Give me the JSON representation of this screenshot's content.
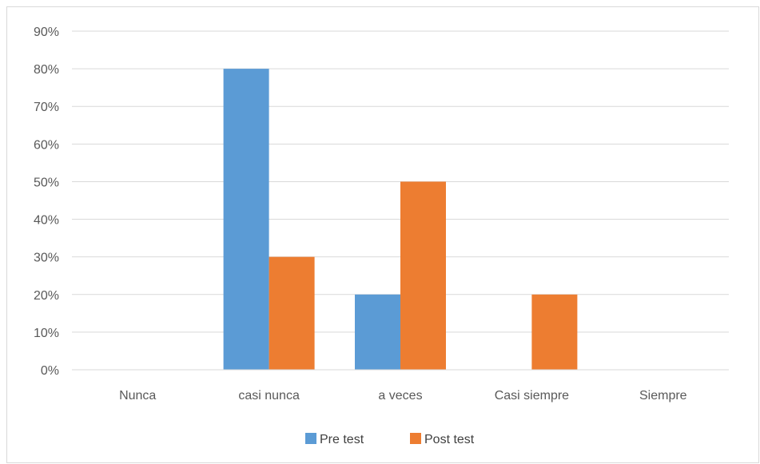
{
  "chart_data": {
    "type": "bar",
    "categories": [
      "Nunca",
      "casi nunca",
      "a veces",
      "Casi siempre",
      "Siempre"
    ],
    "series": [
      {
        "name": "Pre test",
        "values": [
          0,
          80,
          20,
          0,
          0
        ],
        "color": "#5b9bd5"
      },
      {
        "name": "Post test",
        "values": [
          0,
          30,
          50,
          20,
          0
        ],
        "color": "#ed7d31"
      }
    ],
    "y_ticks": [
      "0%",
      "10%",
      "20%",
      "30%",
      "40%",
      "50%",
      "60%",
      "70%",
      "80%",
      "90%"
    ],
    "ylim": [
      0,
      90
    ],
    "grid": true,
    "gridline_color": "#d9d9d9",
    "legend_position": "bottom"
  }
}
